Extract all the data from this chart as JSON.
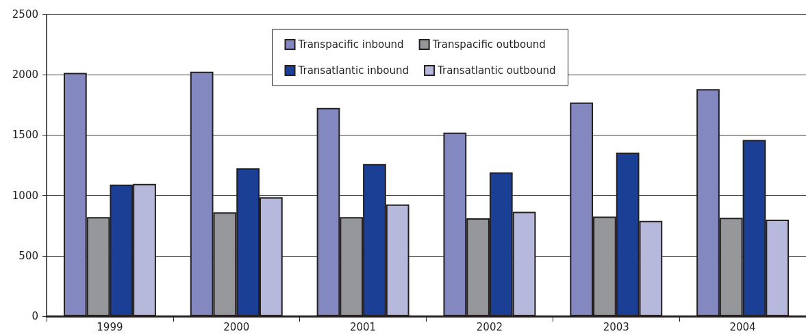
{
  "chart_data": {
    "type": "bar",
    "categories": [
      "1999",
      "2000",
      "2001",
      "2002",
      "2003",
      "2004"
    ],
    "series": [
      {
        "name": "Transpacific inbound",
        "color": "#8488c0",
        "values": [
          2015,
          2025,
          1725,
          1520,
          1770,
          1880
        ]
      },
      {
        "name": "Transpacific outbound",
        "color": "#96979b",
        "values": [
          820,
          860,
          820,
          810,
          825,
          815
        ]
      },
      {
        "name": "Transatlantic inbound",
        "color": "#1c3f96",
        "values": [
          1090,
          1225,
          1260,
          1190,
          1355,
          1460
        ]
      },
      {
        "name": "Transatlantic outbound",
        "color": "#b6b9dc",
        "values": [
          1095,
          985,
          925,
          865,
          790,
          800
        ]
      }
    ],
    "ylim": [
      0,
      2500
    ],
    "yticks": [
      0,
      500,
      1000,
      1500,
      2000,
      2500
    ],
    "grid": "y",
    "legend": "top"
  }
}
